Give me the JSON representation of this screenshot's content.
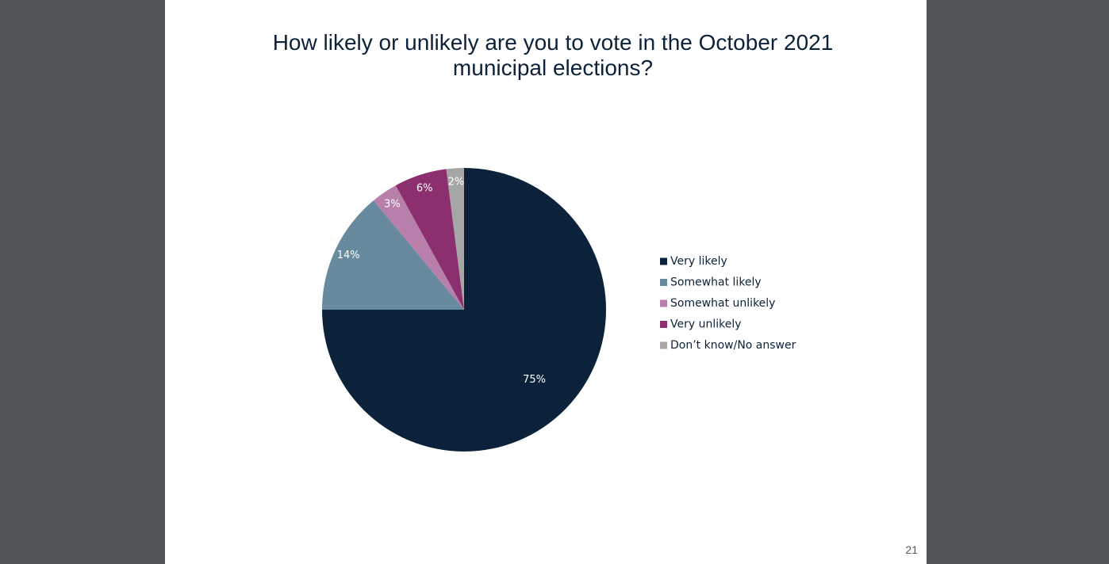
{
  "chart_data": {
    "type": "pie",
    "title": "How likely or unlikely are you to vote in the October 2021 municipal elections?",
    "categories": [
      "Very likely",
      "Somewhat likely",
      "Somewhat unlikely",
      "Very unlikely",
      "Don’t know/No answer"
    ],
    "values": [
      75,
      14,
      3,
      6,
      2
    ],
    "value_labels": [
      "75%",
      "14%",
      "3%",
      "6%",
      "2%"
    ],
    "colors": [
      "#0c223a",
      "#678a9e",
      "#b97fab",
      "#8b2f6e",
      "#a6a6a6"
    ],
    "legend": "right"
  },
  "page_number": "21"
}
